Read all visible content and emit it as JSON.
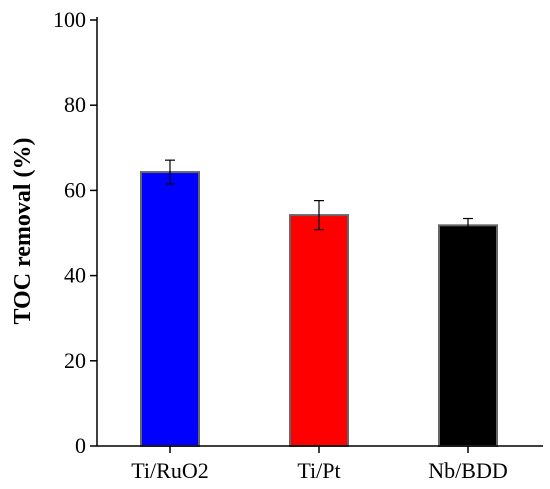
{
  "chart_data": {
    "type": "bar",
    "categories": [
      "Ti/RuO2",
      "Ti/Pt",
      "Nb/BDD"
    ],
    "values": [
      64.3,
      54.2,
      51.8
    ],
    "errors": [
      2.8,
      3.4,
      1.6
    ],
    "colors": [
      "#0000ff",
      "#ff0000",
      "#000000"
    ],
    "title": "",
    "xlabel": "",
    "ylabel": "TOC removal (%)",
    "ylim": [
      0,
      100
    ],
    "yticks": [
      0,
      20,
      40,
      60,
      80,
      100
    ],
    "grid": false
  }
}
